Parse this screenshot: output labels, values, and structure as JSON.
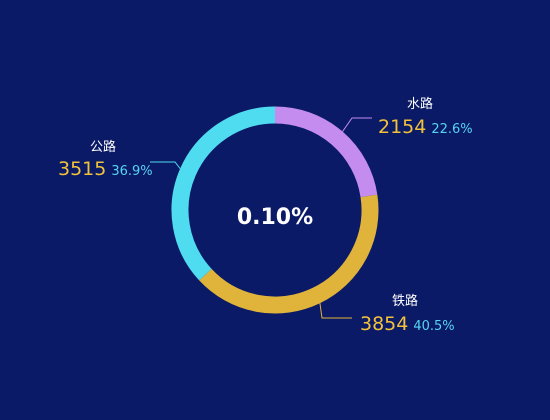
{
  "chart_data": {
    "type": "pie",
    "variant": "donut",
    "center_text": "0.10%",
    "slices": [
      {
        "name": "水路",
        "value": 2154,
        "percent": "22.6%",
        "color": "#c58cf0"
      },
      {
        "name": "铁路",
        "value": 3854,
        "percent": "40.5%",
        "color": "#e0b43a"
      },
      {
        "name": "公路",
        "value": 3515,
        "percent": "36.9%",
        "color": "#4fdcf0"
      }
    ]
  },
  "colors": {
    "background": "#0a1a66",
    "value_text": "#f2c23b",
    "percent_text": "#57d3f2",
    "name_text": "#ffffff"
  }
}
